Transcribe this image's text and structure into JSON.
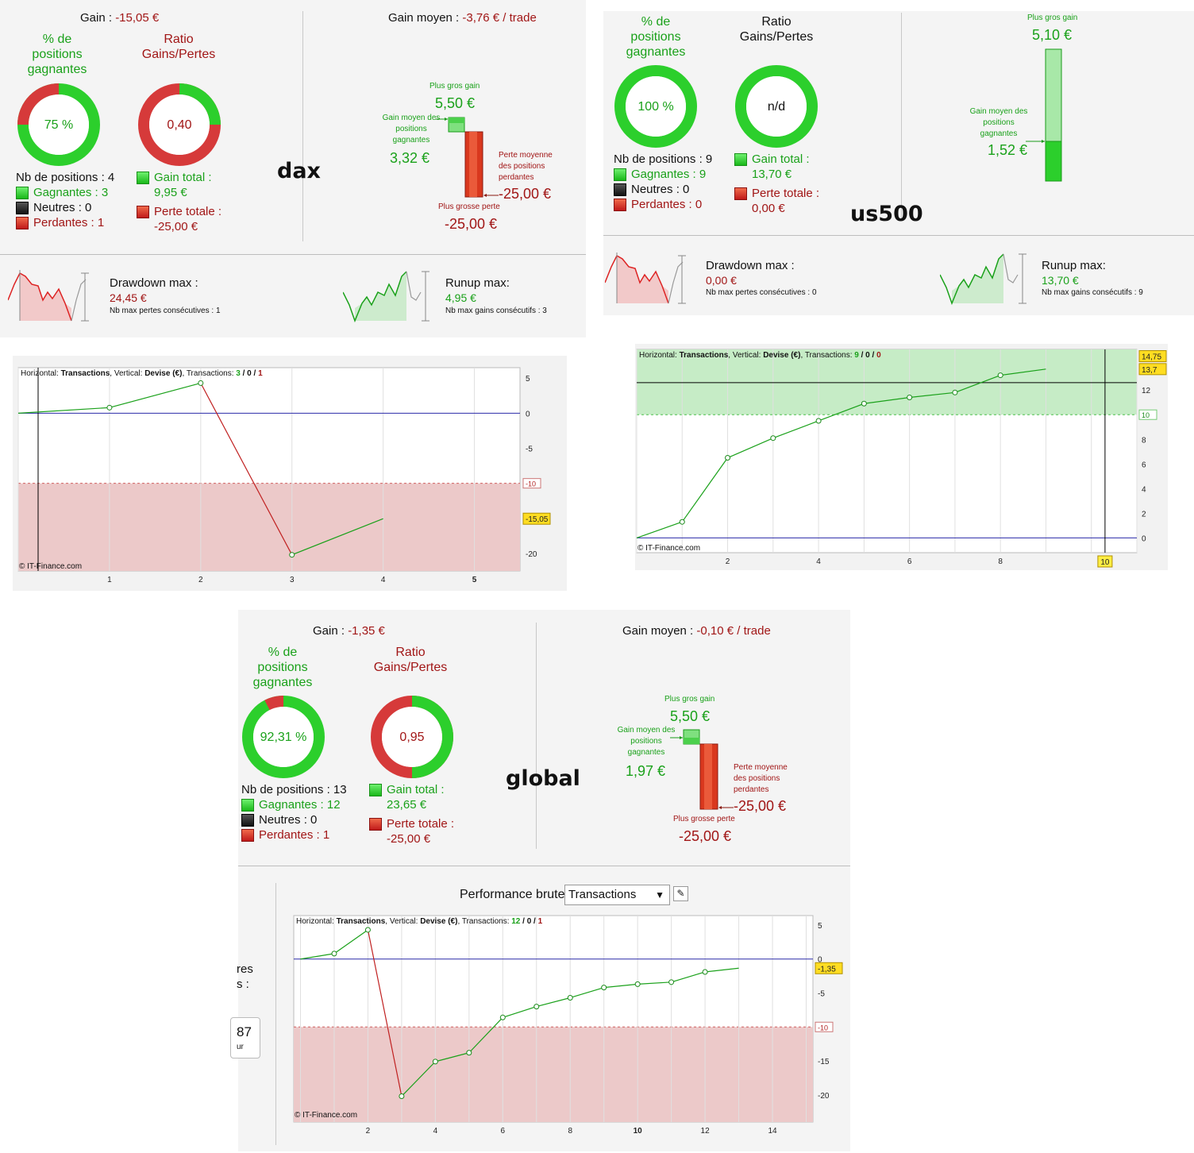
{
  "dax": {
    "gain_label": "Gain : ",
    "gain_value": "-15,05 €",
    "gain_moyen_label": "Gain moyen : ",
    "gain_moyen_value": "-3,76 € / trade",
    "pct_title": [
      "% de",
      "positions",
      "gagnantes"
    ],
    "pct_value": "75 %",
    "ratio_title": [
      "Ratio",
      "Gains/Pertes"
    ],
    "ratio_value": "0,40",
    "nb_positions": "Nb de positions : 4",
    "gagnantes": "Gagnantes : 3",
    "neutres": "Neutres : 0",
    "perdantes": "Perdantes : 1",
    "gain_total_label": "Gain total :",
    "gain_total_value": "9,95 €",
    "perte_totale_label": "Perte totale :",
    "perte_totale_value": "-25,00 €",
    "name": "dax",
    "plus_gros_gain_label": "Plus gros gain",
    "plus_gros_gain_value": "5,50 €",
    "gain_moyen_pos_label": [
      "Gain moyen des",
      "positions",
      "gagnantes"
    ],
    "gain_moyen_pos_value": "3,32 €",
    "perte_moyenne_label": [
      "Perte moyenne",
      "des positions",
      "perdantes"
    ],
    "perte_moyenne_value": "-25,00 €",
    "plus_grosse_perte_label": "Plus grosse perte",
    "plus_grosse_perte_value": "-25,00 €",
    "drawdown_label": "Drawdown max :",
    "drawdown_value": "24,45 €",
    "drawdown_sub": "Nb max pertes consécutives : 1",
    "runup_label": "Runup max:",
    "runup_value": "4,95 €",
    "runup_sub": "Nb max gains consécutifs : 3"
  },
  "us500": {
    "pct_title": [
      "% de",
      "positions",
      "gagnantes"
    ],
    "pct_value": "100 %",
    "ratio_title": [
      "Ratio",
      "Gains/Pertes"
    ],
    "ratio_value": "n/d",
    "nb_positions": "Nb de positions : 9",
    "gagnantes": "Gagnantes : 9",
    "neutres": "Neutres : 0",
    "perdantes": "Perdantes : 0",
    "gain_total_label": "Gain total :",
    "gain_total_value": "13,70 €",
    "perte_totale_label": "Perte totale :",
    "perte_totale_value": "0,00 €",
    "name": "us500",
    "plus_gros_gain_label": "Plus gros gain",
    "plus_gros_gain_value": "5,10 €",
    "gain_moyen_pos_label": [
      "Gain moyen des",
      "positions",
      "gagnantes"
    ],
    "gain_moyen_pos_value": "1,52 €",
    "drawdown_label": "Drawdown max :",
    "drawdown_value": "0,00 €",
    "drawdown_sub": "Nb max pertes consécutives : 0",
    "runup_label": "Runup max:",
    "runup_value": "13,70 €",
    "runup_sub": "Nb max gains consécutifs : 9"
  },
  "global": {
    "gain_label": "Gain : ",
    "gain_value": "-1,35 €",
    "gain_moyen_label": "Gain moyen : ",
    "gain_moyen_value": "-0,10 € / trade",
    "pct_title": [
      "% de",
      "positions",
      "gagnantes"
    ],
    "pct_value": "92,31 %",
    "ratio_title": [
      "Ratio",
      "Gains/Pertes"
    ],
    "ratio_value": "0,95",
    "nb_positions": "Nb de positions : 13",
    "gagnantes": "Gagnantes : 12",
    "neutres": "Neutres : 0",
    "perdantes": "Perdantes : 1",
    "gain_total_label": "Gain total :",
    "gain_total_value": "23,65 €",
    "perte_totale_label": "Perte totale :",
    "perte_totale_value": "-25,00 €",
    "name": "global",
    "plus_gros_gain_label": "Plus gros gain",
    "plus_gros_gain_value": "5,50 €",
    "gain_moyen_pos_label": [
      "Gain moyen des",
      "positions",
      "gagnantes"
    ],
    "gain_moyen_pos_value": "1,97 €",
    "perte_moyenne_label": [
      "Perte moyenne",
      "des positions",
      "perdantes"
    ],
    "perte_moyenne_value": "-25,00 €",
    "plus_grosse_perte_label": "Plus grosse perte",
    "plus_grosse_perte_value": "-25,00 €",
    "perf_label": "Performance brute",
    "perf_select": "Transactions",
    "partial_1": "res",
    "partial_2": "s :",
    "partial_3": "87",
    "partial_4": "ur"
  },
  "charts": {
    "dax": {
      "header": [
        "Horizontal: ",
        "Transactions",
        ", Vertical: ",
        "Devise (€)",
        ", Transactions: ",
        "3",
        " / ",
        "0",
        " / ",
        "1"
      ],
      "copyright": "© IT-Finance.com",
      "threshold_label": "-10",
      "last_label": "-15,05",
      "yticks": [
        "5",
        "0",
        "-5",
        "-20"
      ],
      "xticks": [
        "1",
        "2",
        "3",
        "4",
        "5"
      ]
    },
    "us500": {
      "header": [
        "Horizontal: ",
        "Transactions",
        ", Vertical: ",
        "Devise (€)",
        ", Transactions: ",
        "9",
        " / ",
        "0",
        " / ",
        "0"
      ],
      "copyright": "© IT-Finance.com",
      "top_label": "14,75",
      "last_label": "13,7",
      "threshold_label": "10",
      "yticks": [
        "12",
        "8",
        "6",
        "4",
        "2",
        "0"
      ],
      "xticks": [
        "2",
        "4",
        "6",
        "8"
      ],
      "cursor_label": "10"
    },
    "global": {
      "header": [
        "Horizontal: ",
        "Transactions",
        ", Vertical: ",
        "Devise (€)",
        ", Transactions: ",
        "12",
        " / ",
        "0",
        " / ",
        "1"
      ],
      "copyright": "© IT-Finance.com",
      "threshold_label": "-10",
      "last_label": "-1,35",
      "yticks": [
        "5",
        "0",
        "-5",
        "-15",
        "-20"
      ],
      "xticks": [
        "2",
        "4",
        "6",
        "8",
        "10",
        "12",
        "14"
      ]
    }
  },
  "chart_data": [
    {
      "type": "line",
      "title": "dax",
      "xlabel": "Transactions",
      "ylabel": "Devise (€)",
      "x": [
        0,
        1,
        2,
        3,
        4
      ],
      "y": [
        0,
        0.8,
        4.3,
        -20.2,
        -15.05
      ],
      "xlim": [
        0,
        5.5
      ],
      "ylim": [
        -22.5,
        6.5
      ],
      "threshold": -10
    },
    {
      "type": "line",
      "title": "us500",
      "xlabel": "Transactions",
      "ylabel": "Devise (€)",
      "x": [
        0,
        1,
        2,
        3,
        4,
        5,
        6,
        7,
        8,
        9
      ],
      "y": [
        0,
        1.3,
        6.5,
        8.1,
        9.5,
        10.9,
        11.4,
        11.8,
        13.2,
        13.7
      ],
      "xlim": [
        0,
        11
      ],
      "ylim": [
        -1.2,
        15.3
      ],
      "threshold": 10,
      "cursor_x": 10.3,
      "cursor_y": 12.6
    },
    {
      "type": "line",
      "title": "global",
      "xlabel": "Transactions",
      "ylabel": "Devise (€)",
      "x": [
        0,
        1,
        2,
        3,
        4,
        5,
        6,
        7,
        8,
        9,
        10,
        11,
        12,
        13
      ],
      "y": [
        0,
        0.8,
        4.3,
        -20.2,
        -15.1,
        -13.8,
        -8.6,
        -7.0,
        -5.7,
        -4.2,
        -3.7,
        -3.4,
        -1.9,
        -1.35
      ],
      "xlim": [
        -0.2,
        15.2
      ],
      "ylim": [
        -24,
        6.4
      ],
      "threshold": -10
    }
  ]
}
